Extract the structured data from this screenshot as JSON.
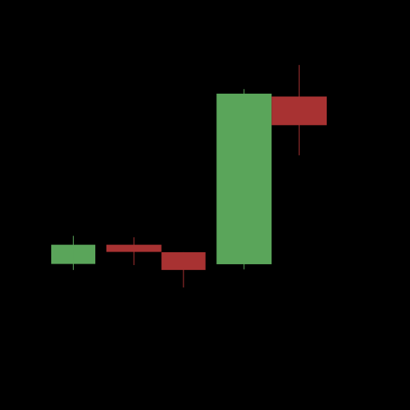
{
  "chart_data": {
    "type": "candlestick",
    "title": "",
    "xlabel": "",
    "ylabel": "",
    "grid": false,
    "legend": "none",
    "ylim": [
      0,
      100
    ],
    "candles": [
      {
        "open": 30.0,
        "close": 36.7,
        "high": 39.8,
        "low": 27.9
      },
      {
        "open": 36.7,
        "close": 34.2,
        "high": 39.3,
        "low": 29.6
      },
      {
        "open": 34.1,
        "close": 27.9,
        "high": 34.1,
        "low": 21.8
      },
      {
        "open": 29.9,
        "close": 89.4,
        "high": 91.0,
        "low": 28.1
      },
      {
        "open": 88.4,
        "close": 78.4,
        "high": 99.4,
        "low": 67.9
      }
    ],
    "colors": {
      "background": "#000000",
      "up": "#5aa55a",
      "down": "#a83232"
    }
  }
}
